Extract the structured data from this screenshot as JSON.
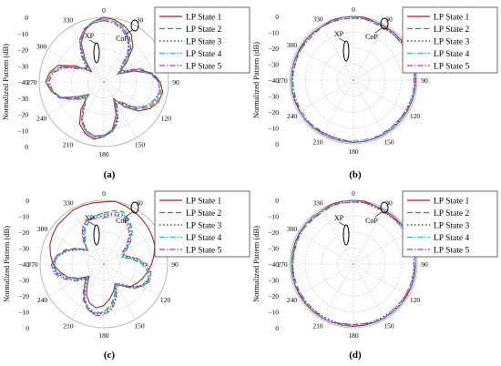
{
  "figure": {
    "colors": {
      "state1": "#b22222",
      "state2": "#3a9a28",
      "state3": "#1a1ab8",
      "state4": "#2ab8c8",
      "state5": "#b030c8",
      "grid": "#b8b8b8",
      "text": "#000000"
    }
  },
  "chart_data": [
    {
      "type": "polar-line",
      "panel_label": "(a)",
      "ylabel": "Normalized Pattern (dB)",
      "r_ticks": [
        "0",
        "−10",
        "−20",
        "−30",
        "−40",
        "−30",
        "−20",
        "−10",
        "0"
      ],
      "r_range": [
        -40,
        0
      ],
      "angle_ticks": [
        "0",
        "30",
        "90",
        "120",
        "150",
        "180",
        "210",
        "240",
        "270",
        "300",
        "330"
      ],
      "grid": true,
      "legend_position": "top-right",
      "annotations": [
        "XP",
        "CoP"
      ],
      "series": [
        {
          "name": "LP State 1",
          "color": "#b22222",
          "dash": "solid",
          "r": [
            0,
            -1,
            -3,
            -6,
            -12,
            -22,
            -30,
            -20,
            -10,
            -5,
            -3,
            -4,
            -7,
            -12,
            -20,
            -28,
            -18,
            -10,
            -6,
            -4,
            -6,
            -10,
            -18,
            -28,
            -22,
            -12,
            -7,
            -4,
            -6,
            -10,
            -20,
            -30,
            -22,
            -12,
            -6,
            -2
          ]
        },
        {
          "name": "LP State 2",
          "color": "#3a9a28",
          "dash": "dashed",
          "r": [
            -1,
            -2,
            -4,
            -8,
            -14,
            -24,
            -28,
            -18,
            -9,
            -5,
            -4,
            -5,
            -8,
            -14,
            -22,
            -26,
            -16,
            -9,
            -6,
            -5,
            -7,
            -12,
            -20,
            -26,
            -20,
            -11,
            -7,
            -5,
            -7,
            -12,
            -22,
            -28,
            -20,
            -10,
            -5,
            -2
          ]
        },
        {
          "name": "LP State 3",
          "color": "#1a1ab8",
          "dash": "dotted",
          "r": [
            -2,
            -3,
            -5,
            -9,
            -16,
            -26,
            -27,
            -17,
            -10,
            -6,
            -5,
            -6,
            -9,
            -15,
            -23,
            -25,
            -15,
            -9,
            -7,
            -6,
            -8,
            -13,
            -21,
            -25,
            -19,
            -11,
            -8,
            -6,
            -8,
            -13,
            -23,
            -27,
            -19,
            -10,
            -5,
            -3
          ]
        },
        {
          "name": "LP State 4",
          "color": "#2ab8c8",
          "dash": "dashdot",
          "r": [
            -1,
            -2,
            -5,
            -9,
            -15,
            -25,
            -29,
            -19,
            -11,
            -6,
            -5,
            -6,
            -9,
            -15,
            -24,
            -27,
            -17,
            -10,
            -7,
            -5,
            -7,
            -12,
            -21,
            -27,
            -21,
            -12,
            -8,
            -5,
            -7,
            -12,
            -22,
            -29,
            -21,
            -11,
            -5,
            -2
          ]
        },
        {
          "name": "LP State 5",
          "color": "#b030c8",
          "dash": "dashdot",
          "r": [
            -2,
            -3,
            -6,
            -10,
            -17,
            -27,
            -26,
            -16,
            -10,
            -6,
            -5,
            -7,
            -10,
            -16,
            -24,
            -24,
            -14,
            -9,
            -7,
            -6,
            -8,
            -13,
            -22,
            -24,
            -18,
            -11,
            -8,
            -6,
            -8,
            -14,
            -24,
            -26,
            -18,
            -10,
            -5,
            -3
          ]
        }
      ]
    },
    {
      "type": "polar-line",
      "panel_label": "(b)",
      "ylabel": "Normalized Pattern (dB)",
      "r_ticks": [
        "0",
        "−10",
        "−20",
        "−30",
        "−40",
        "−30",
        "−20",
        "−10",
        "0"
      ],
      "r_range": [
        -40,
        0
      ],
      "angle_ticks": [
        "0",
        "30",
        "90",
        "120",
        "150",
        "180",
        "210",
        "240",
        "270",
        "300",
        "330"
      ],
      "grid": true,
      "legend_position": "top-right",
      "annotations": [
        "XP",
        "CoP"
      ],
      "series": [
        {
          "name": "LP State 1",
          "color": "#b22222",
          "dash": "solid",
          "r": [
            0,
            0,
            -1,
            -1,
            -1,
            -1,
            -1,
            -1,
            -1,
            -1,
            -1,
            -1,
            -1,
            -1,
            -1,
            -1,
            -1,
            -1,
            -1,
            -1,
            -1,
            -1,
            -1,
            -1,
            -1,
            -1,
            -1,
            -1,
            -1,
            -1,
            -1,
            -1,
            -1,
            -1,
            0,
            0
          ]
        },
        {
          "name": "LP State 2",
          "color": "#3a9a28",
          "dash": "dashed",
          "r": [
            0,
            -1,
            -1,
            -1,
            -2,
            -2,
            -2,
            -1,
            -1,
            -1,
            -1,
            -1,
            -2,
            -2,
            -2,
            -1,
            -1,
            -1,
            -1,
            -1,
            -2,
            -2,
            -2,
            -1,
            -1,
            -1,
            -1,
            -1,
            -2,
            -2,
            -2,
            -1,
            -1,
            -1,
            -1,
            0
          ]
        },
        {
          "name": "LP State 3",
          "color": "#1a1ab8",
          "dash": "dotted",
          "r": [
            -1,
            -1,
            -1,
            -2,
            -2,
            -2,
            -1,
            -1,
            -1,
            -1,
            -1,
            -2,
            -2,
            -2,
            -1,
            -1,
            -1,
            -1,
            -1,
            -2,
            -2,
            -2,
            -1,
            -1,
            -1,
            -1,
            -1,
            -2,
            -2,
            -2,
            -1,
            -1,
            -1,
            -1,
            -1,
            -1
          ]
        },
        {
          "name": "LP State 4",
          "color": "#2ab8c8",
          "dash": "dashdot",
          "r": [
            0,
            -1,
            -1,
            -2,
            -2,
            -1,
            -1,
            -1,
            -1,
            -2,
            -2,
            -2,
            -1,
            -1,
            -1,
            -1,
            -2,
            -2,
            -2,
            -1,
            -1,
            -1,
            -1,
            -2,
            -2,
            -2,
            -1,
            -1,
            -1,
            -1,
            -2,
            -2,
            -2,
            -1,
            -1,
            0
          ]
        },
        {
          "name": "LP State 5",
          "color": "#b030c8",
          "dash": "dashdot",
          "r": [
            -1,
            -1,
            -2,
            -2,
            -1,
            -1,
            -1,
            -2,
            -2,
            -2,
            -1,
            -1,
            -1,
            -2,
            -2,
            -2,
            -1,
            -1,
            -1,
            -2,
            -2,
            -2,
            -1,
            -1,
            -1,
            -2,
            -2,
            -2,
            -1,
            -1,
            -1,
            -2,
            -2,
            -1,
            -1,
            -1
          ]
        }
      ]
    },
    {
      "type": "polar-line",
      "panel_label": "(c)",
      "ylabel": "Normalized Pattern (dB)",
      "r_ticks": [
        "0",
        "−10",
        "−20",
        "−30",
        "−40",
        "−30",
        "−20",
        "−10",
        "0"
      ],
      "r_range": [
        -40,
        0
      ],
      "angle_ticks": [
        "0",
        "30",
        "90",
        "120",
        "150",
        "180",
        "210",
        "240",
        "270",
        "300",
        "330"
      ],
      "grid": true,
      "legend_position": "top-right",
      "annotations": [
        "XP",
        "CoP"
      ],
      "series": [
        {
          "name": "LP State 1",
          "color": "#b22222",
          "dash": "solid",
          "r": [
            -1,
            0,
            -1,
            -2,
            -3,
            -4,
            -5,
            -6,
            -8,
            -10,
            -12,
            -14,
            -16,
            -18,
            -22,
            -26,
            -22,
            -18,
            -14,
            -12,
            -14,
            -18,
            -24,
            -28,
            -22,
            -16,
            -12,
            -8,
            -6,
            -4,
            -3,
            -2,
            -2,
            -1,
            -1,
            -1
          ]
        },
        {
          "name": "LP State 2",
          "color": "#3a9a28",
          "dash": "dashed",
          "r": [
            -8,
            -6,
            -5,
            -8,
            -12,
            -18,
            -24,
            -28,
            -22,
            -16,
            -12,
            -10,
            -12,
            -16,
            -22,
            -26,
            -20,
            -14,
            -10,
            -8,
            -10,
            -14,
            -20,
            -26,
            -22,
            -16,
            -10,
            -8,
            -10,
            -14,
            -20,
            -26,
            -22,
            -16,
            -12,
            -9
          ]
        },
        {
          "name": "LP State 3",
          "color": "#1a1ab8",
          "dash": "dotted",
          "r": [
            -10,
            -8,
            -7,
            -10,
            -14,
            -20,
            -26,
            -26,
            -20,
            -14,
            -11,
            -10,
            -13,
            -18,
            -24,
            -25,
            -18,
            -12,
            -9,
            -8,
            -11,
            -16,
            -22,
            -26,
            -20,
            -14,
            -9,
            -8,
            -11,
            -16,
            -22,
            -27,
            -20,
            -14,
            -11,
            -10
          ]
        },
        {
          "name": "LP State 4",
          "color": "#2ab8c8",
          "dash": "dashdot",
          "r": [
            -9,
            -7,
            -6,
            -9,
            -13,
            -19,
            -25,
            -27,
            -21,
            -15,
            -12,
            -11,
            -13,
            -17,
            -23,
            -26,
            -19,
            -13,
            -10,
            -9,
            -11,
            -15,
            -21,
            -27,
            -21,
            -15,
            -10,
            -9,
            -11,
            -15,
            -21,
            -27,
            -21,
            -15,
            -11,
            -9
          ]
        },
        {
          "name": "LP State 5",
          "color": "#b030c8",
          "dash": "dashdot",
          "r": [
            -11,
            -9,
            -8,
            -11,
            -15,
            -21,
            -27,
            -25,
            -19,
            -13,
            -10,
            -9,
            -12,
            -17,
            -23,
            -24,
            -17,
            -11,
            -8,
            -7,
            -10,
            -15,
            -21,
            -25,
            -19,
            -13,
            -8,
            -7,
            -10,
            -15,
            -21,
            -26,
            -19,
            -13,
            -10,
            -11
          ]
        }
      ]
    },
    {
      "type": "polar-line",
      "panel_label": "(d)",
      "ylabel": "Normalized Pattern (dB)",
      "r_ticks": [
        "0",
        "−10",
        "−20",
        "−30",
        "−40",
        "−30",
        "−20",
        "−10",
        "0"
      ],
      "r_range": [
        -40,
        0
      ],
      "angle_ticks": [
        "0",
        "30",
        "90",
        "120",
        "150",
        "180",
        "210",
        "240",
        "270",
        "300",
        "330"
      ],
      "grid": true,
      "legend_position": "top-right",
      "annotations": [
        "XP",
        "CoP"
      ],
      "series": [
        {
          "name": "LP State 1",
          "color": "#b22222",
          "dash": "solid",
          "r": [
            0,
            0,
            -1,
            -1,
            -1,
            -1,
            -1,
            -1,
            -1,
            -1,
            -1,
            -1,
            -1,
            -1,
            -1,
            -1,
            -1,
            -1,
            -1,
            -1,
            -1,
            -1,
            -1,
            -1,
            -1,
            -1,
            -1,
            -1,
            -1,
            -1,
            -1,
            -1,
            -1,
            -1,
            0,
            0
          ]
        },
        {
          "name": "LP State 2",
          "color": "#3a9a28",
          "dash": "dashed",
          "r": [
            0,
            -1,
            -1,
            -2,
            -2,
            -2,
            -1,
            -1,
            -1,
            -1,
            -2,
            -2,
            -2,
            -1,
            -1,
            -1,
            -1,
            -2,
            -2,
            -2,
            -1,
            -1,
            -1,
            -1,
            -2,
            -2,
            -2,
            -1,
            -1,
            -1,
            -1,
            -2,
            -2,
            -1,
            -1,
            0
          ]
        },
        {
          "name": "LP State 3",
          "color": "#1a1ab8",
          "dash": "dotted",
          "r": [
            -1,
            -1,
            -2,
            -2,
            -2,
            -1,
            -1,
            -1,
            -2,
            -2,
            -2,
            -1,
            -1,
            -1,
            -2,
            -2,
            -2,
            -1,
            -1,
            -1,
            -2,
            -2,
            -2,
            -1,
            -1,
            -1,
            -2,
            -2,
            -2,
            -1,
            -1,
            -1,
            -2,
            -2,
            -1,
            -1
          ]
        },
        {
          "name": "LP State 4",
          "color": "#2ab8c8",
          "dash": "dashdot",
          "r": [
            0,
            -1,
            -1,
            -1,
            -2,
            -2,
            -2,
            -1,
            -1,
            -1,
            -2,
            -2,
            -2,
            -1,
            -1,
            -1,
            -2,
            -2,
            -2,
            -1,
            -1,
            -1,
            -2,
            -2,
            -2,
            -1,
            -1,
            -1,
            -2,
            -2,
            -2,
            -1,
            -1,
            -1,
            -1,
            0
          ]
        },
        {
          "name": "LP State 5",
          "color": "#b030c8",
          "dash": "dashdot",
          "r": [
            -1,
            -1,
            -1,
            -2,
            -2,
            -1,
            -1,
            -2,
            -2,
            -2,
            -1,
            -1,
            -2,
            -2,
            -2,
            -1,
            -1,
            -2,
            -2,
            -2,
            -1,
            -1,
            -2,
            -2,
            -2,
            -1,
            -1,
            -2,
            -2,
            -2,
            -1,
            -1,
            -2,
            -2,
            -1,
            -1
          ]
        }
      ]
    }
  ]
}
